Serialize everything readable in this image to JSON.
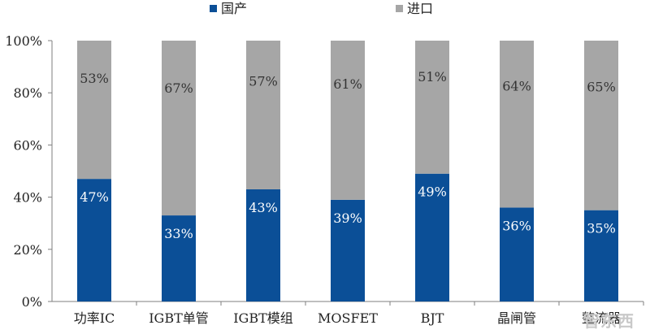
{
  "legend": {
    "domestic_label": "国产",
    "import_label": "进口"
  },
  "watermark": "智东西",
  "chart_data": {
    "type": "bar",
    "stacked": true,
    "categories": [
      "功率IC",
      "IGBT单管",
      "IGBT模组",
      "MOSFET",
      "BJT",
      "晶闸管",
      "整流器"
    ],
    "series": [
      {
        "name": "国产",
        "color": "#0b4f97",
        "values": [
          47,
          33,
          43,
          39,
          49,
          36,
          35
        ],
        "labels": [
          "47%",
          "33%",
          "43%",
          "39%",
          "49%",
          "36%",
          "35%"
        ]
      },
      {
        "name": "进口",
        "color": "#a6a6a6",
        "values": [
          53,
          67,
          57,
          61,
          51,
          64,
          65
        ],
        "labels": [
          "53%",
          "67%",
          "57%",
          "61%",
          "51%",
          "64%",
          "65%"
        ]
      }
    ],
    "ylim": [
      0,
      100
    ],
    "yticks": [
      0,
      20,
      40,
      60,
      80,
      100
    ],
    "ytick_labels": [
      "0%",
      "20%",
      "40%",
      "60%",
      "80%",
      "100%"
    ],
    "grid": false,
    "legend_position": "top-center"
  }
}
